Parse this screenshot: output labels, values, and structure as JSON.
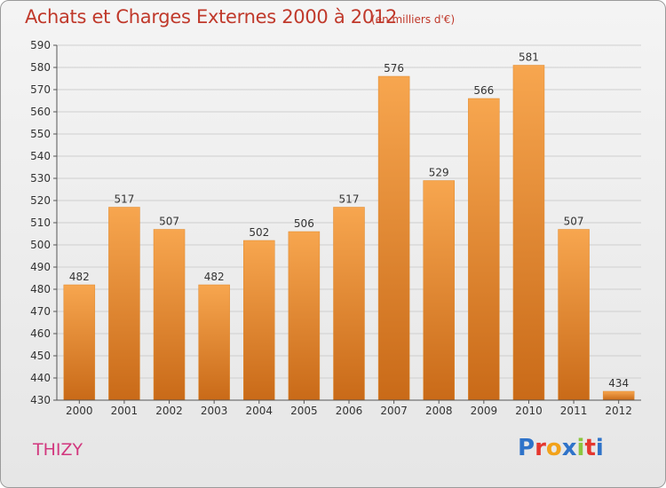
{
  "header": {
    "title": "Achats et Charges Externes 2000 à 2012",
    "subtitle": "(en milliers d'€)"
  },
  "footer": {
    "town": "THIZY",
    "logo_text": "Proxiti"
  },
  "colors": {
    "title": "#c0392b",
    "town": "#d2377e",
    "bar_top": "#f7a64f",
    "bar_bottom": "#c96a18",
    "grid": "#cfcfcf"
  },
  "chart_data": {
    "type": "bar",
    "title": "Achats et Charges Externes 2000 à 2012",
    "subtitle": "(en milliers d'€)",
    "xlabel": "",
    "ylabel": "",
    "categories": [
      "2000",
      "2001",
      "2002",
      "2003",
      "2004",
      "2005",
      "2006",
      "2007",
      "2008",
      "2009",
      "2010",
      "2011",
      "2012"
    ],
    "values": [
      482,
      517,
      507,
      482,
      502,
      506,
      517,
      576,
      529,
      566,
      581,
      507,
      434
    ],
    "ylim": [
      430,
      590
    ],
    "yticks": [
      430,
      440,
      450,
      460,
      470,
      480,
      490,
      500,
      510,
      520,
      530,
      540,
      550,
      560,
      570,
      580,
      590
    ],
    "grid": true,
    "legend": "none"
  }
}
